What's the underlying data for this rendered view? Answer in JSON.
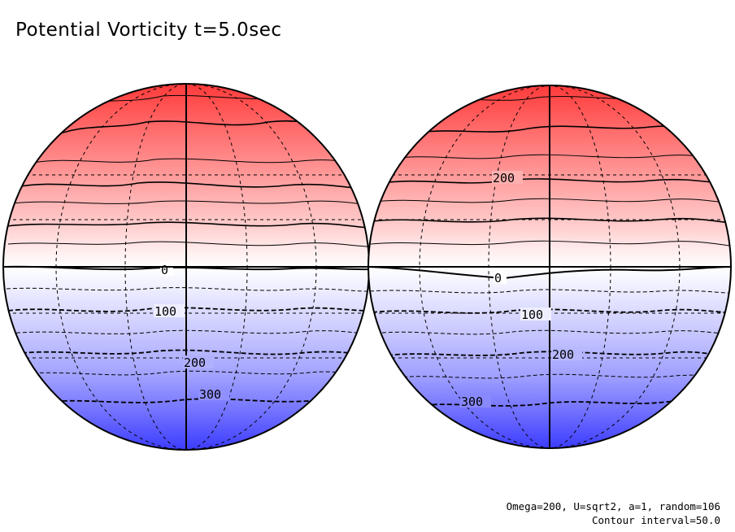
{
  "title": "Potential Vorticity t=5.0sec",
  "info": {
    "params": "Omega=200, U=sqrt2, a=1, random=106",
    "contour": "Contour interval=50.0"
  },
  "colors": {
    "high": "#ff3c3c",
    "low": "#3c3cff",
    "zero": "#ffffff",
    "line": "#000000"
  },
  "contour_labels": {
    "left": [
      "0",
      "100",
      "200",
      "300"
    ],
    "right": [
      "200",
      "0",
      "100",
      "200",
      "300"
    ]
  }
}
